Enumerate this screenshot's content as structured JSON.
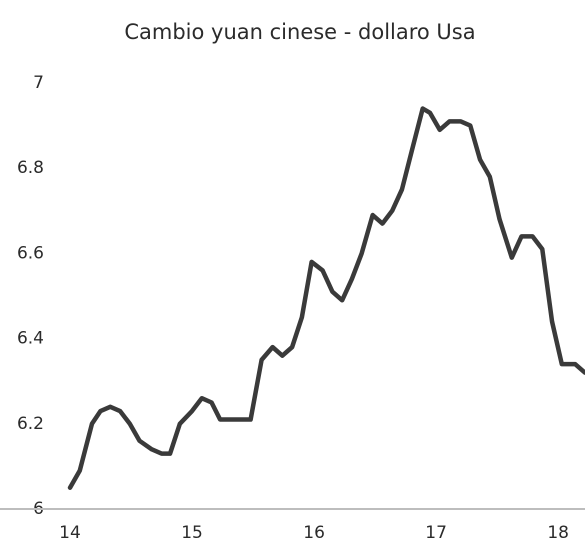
{
  "chart_data": {
    "type": "line",
    "title": "Cambio yuan cinese - dollaro Usa",
    "x": [
      14.0,
      14.08,
      14.18,
      14.25,
      14.33,
      14.41,
      14.49,
      14.57,
      14.67,
      14.75,
      14.82,
      14.9,
      15.0,
      15.08,
      15.16,
      15.23,
      15.33,
      15.48,
      15.57,
      15.66,
      15.74,
      15.82,
      15.9,
      15.98,
      16.07,
      16.15,
      16.23,
      16.31,
      16.39,
      16.48,
      16.56,
      16.64,
      16.72,
      16.8,
      16.89,
      16.95,
      17.03,
      17.11,
      17.2,
      17.28,
      17.36,
      17.44,
      17.52,
      17.62,
      17.7,
      17.79,
      17.87,
      17.95,
      18.03,
      18.14,
      18.22
    ],
    "series": [
      {
        "color": "#3a3a3a",
        "values": [
          6.05,
          6.09,
          6.2,
          6.23,
          6.24,
          6.23,
          6.2,
          6.16,
          6.14,
          6.13,
          6.13,
          6.2,
          6.23,
          6.26,
          6.25,
          6.21,
          6.21,
          6.21,
          6.35,
          6.38,
          6.36,
          6.38,
          6.45,
          6.58,
          6.56,
          6.51,
          6.49,
          6.54,
          6.6,
          6.69,
          6.67,
          6.7,
          6.75,
          6.84,
          6.94,
          6.93,
          6.89,
          6.91,
          6.91,
          6.9,
          6.82,
          6.78,
          6.68,
          6.59,
          6.64,
          6.64,
          6.61,
          6.44,
          6.34,
          6.34,
          6.32
        ]
      }
    ],
    "xlim": [
      14,
      18.22
    ],
    "xticks": [
      14,
      15,
      16,
      17,
      18
    ],
    "ylim": [
      6,
      7
    ],
    "yticks": [
      6,
      6.2,
      6.4,
      6.6,
      6.8,
      7
    ],
    "grid": false
  }
}
